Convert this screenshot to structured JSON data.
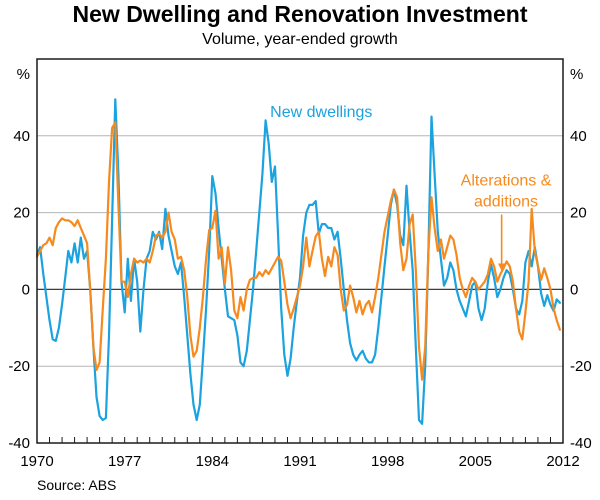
{
  "page": {
    "title": "New Dwelling and Renovation Investment",
    "subtitle": "Volume, year-ended growth",
    "source": "Source: ABS"
  },
  "chart_data": {
    "type": "line",
    "title": "New Dwelling and Renovation Investment",
    "subtitle": "Volume, year-ended growth",
    "ylabel_left": "%",
    "ylabel_right": "%",
    "ylim": [
      -40,
      60
    ],
    "yticks": [
      -40,
      -20,
      0,
      20,
      40
    ],
    "gridlines": [
      -20,
      20,
      40
    ],
    "zero_line": 0,
    "xlim": [
      1970,
      2012
    ],
    "xticks": [
      1970,
      1977,
      1984,
      1991,
      1998,
      2005,
      2012
    ],
    "minor_tick_step": 1,
    "x_start": 1970.0,
    "x_step": 0.25,
    "grid_color": "#b5b5b5",
    "axis_color": "#1a1a1a",
    "source": "Source: ABS",
    "series": [
      {
        "name": "New dwellings",
        "color": "#1BA2DF",
        "label_lines": [
          "New dwellings"
        ],
        "label_anchor": {
          "x": 1992.7,
          "y": 44.9
        },
        "values": [
          9,
          11,
          4,
          -2,
          -8,
          -13,
          -13.4,
          -10,
          -4,
          3,
          10,
          7,
          12,
          7,
          13.5,
          8,
          10,
          0,
          -15,
          -28,
          -33,
          -34,
          -33.5,
          -12,
          18,
          49.5,
          30,
          2,
          -6,
          8,
          -3,
          8,
          2,
          -11,
          0,
          8,
          10,
          15,
          13,
          15,
          10.5,
          21,
          14,
          10,
          6,
          4,
          7,
          -2,
          -12,
          -22,
          -30,
          -34,
          -30,
          -18,
          -5,
          10,
          29.5,
          25,
          16,
          8,
          0,
          -7,
          -7.5,
          -8,
          -12,
          -19,
          -20,
          -16,
          -8,
          0,
          10,
          20,
          30,
          44,
          38,
          28,
          32,
          14,
          -5,
          -17,
          -22.5,
          -18,
          -10,
          -3,
          3,
          14,
          20,
          22,
          22,
          23,
          14.5,
          17,
          17,
          16,
          16,
          13,
          15,
          8,
          0,
          -8,
          -14,
          -17,
          -18.5,
          -17,
          -16,
          -18,
          -19,
          -19,
          -17,
          -10,
          -2,
          6,
          14,
          22,
          26,
          22,
          14,
          11.5,
          27,
          15,
          5,
          -15,
          -34,
          -35,
          -20,
          10,
          45,
          30,
          15,
          8,
          1,
          3,
          7,
          5,
          0,
          -3,
          -5,
          -7,
          -3,
          1,
          2,
          -5,
          -8,
          -5,
          2,
          6.5,
          3,
          -2,
          0,
          3,
          5,
          4,
          0,
          -5,
          -6.5,
          -3,
          7,
          10,
          6,
          11,
          6,
          -1,
          -4.3,
          -1.5,
          -4,
          -5.6,
          -2.6,
          -3.5
        ]
      },
      {
        "name": "Alterations & additions",
        "color": "#F68A1E",
        "label_lines": [
          "Alterations &",
          "additions"
        ],
        "label_anchor": {
          "x": 2007.45,
          "y": 27.1
        },
        "arrow": {
          "x": 2007.1,
          "y_from": 19.5,
          "y_to": 4.8
        },
        "values": [
          8.5,
          10,
          11.5,
          12,
          13.5,
          11.5,
          16,
          17.5,
          18.5,
          18,
          18,
          17.5,
          16.5,
          18,
          16,
          14,
          12,
          0,
          -15,
          -21,
          -19,
          -5,
          8,
          28,
          42,
          43.5,
          22,
          2,
          2,
          -2,
          4,
          8,
          7,
          7.5,
          7,
          8,
          7,
          10,
          14,
          14.5,
          13.5,
          15,
          20,
          15,
          13,
          8,
          8.5,
          5,
          -2,
          -12,
          -17.5,
          -16,
          -10,
          -2,
          8,
          15.5,
          16,
          20.5,
          8,
          11,
          1.5,
          11,
          5,
          -5.5,
          -7.5,
          -2,
          -5.5,
          0,
          2.5,
          3,
          3,
          4.5,
          3.5,
          5,
          4,
          5.5,
          7,
          8.5,
          7.5,
          2,
          -4,
          -7.5,
          -5,
          -2,
          1,
          6,
          13.5,
          6,
          10,
          13.8,
          15,
          8,
          3.5,
          8.5,
          6,
          11,
          9,
          0,
          -5.5,
          -4,
          1,
          -2,
          -6,
          -3,
          -6.5,
          -4,
          -3,
          -6,
          -2,
          3,
          9,
          15,
          19,
          23,
          26,
          24,
          12,
          5,
          8,
          17,
          19.5,
          5,
          -15,
          -23.5,
          -15,
          10,
          24,
          16,
          10,
          13,
          8,
          11,
          14,
          13,
          9,
          3,
          0,
          -2,
          1,
          3,
          2,
          0,
          1,
          2,
          4,
          8,
          6,
          2,
          4,
          5.5,
          7.3,
          6,
          2,
          -5,
          -11,
          -13,
          -6,
          2,
          21,
          10,
          6,
          2.5,
          5.5,
          3,
          0,
          -5,
          -8,
          -10.5
        ]
      }
    ]
  }
}
